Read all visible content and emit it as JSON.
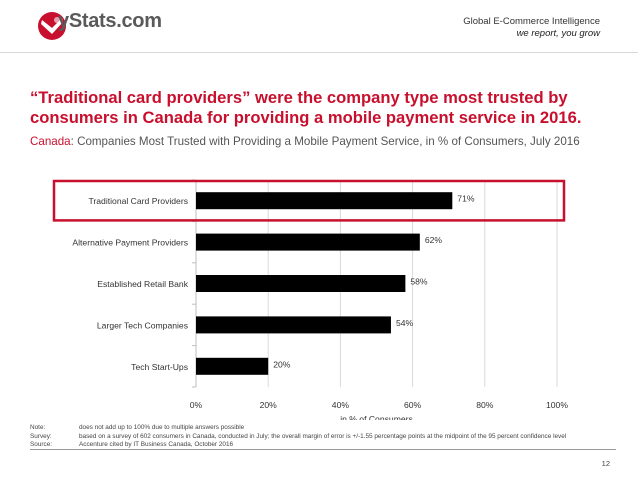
{
  "header": {
    "brand": "yStats.com",
    "tagline_line1": "Global E-Commerce Intelligence",
    "tagline_line2": "we report, you grow",
    "brand_color": "#c8102e"
  },
  "slide": {
    "title": "“Traditional card providers” were the company type most trusted by consumers in Canada for providing a mobile payment service in 2016.",
    "subtitle_country": "Canada",
    "subtitle_rest": ": Companies Most Trusted with Providing a Mobile Payment Service, in % of Consumers, July 2016",
    "page_number": "12"
  },
  "chart_data": {
    "type": "bar",
    "orientation": "horizontal",
    "categories": [
      "Traditional Card Providers",
      "Alternative Payment Providers",
      "Established Retail Bank",
      "Larger Tech Companies",
      "Tech Start-Ups"
    ],
    "values": [
      71,
      62,
      58,
      54,
      20
    ],
    "value_labels": [
      "71%",
      "62%",
      "58%",
      "54%",
      "20%"
    ],
    "xlabel": "in % of Consumers",
    "xlim": [
      0,
      100
    ],
    "x_ticks": [
      "0%",
      "20%",
      "40%",
      "60%",
      "80%",
      "100%"
    ],
    "highlighted_category": "Traditional Card Providers",
    "bar_color": "#000000",
    "highlight_color": "#c8102e"
  },
  "notes": [
    {
      "label": "Note:",
      "text": "does not add up to 100% due to multiple answers possible"
    },
    {
      "label": "Survey:",
      "text": "based on a survey of 602 consumers in Canada, conducted in July; the overall margin of error is +/-1.55 percentage points at the midpoint of the 95 percent confidence level"
    },
    {
      "label": "Source:",
      "text": "Accenture cited by IT Business Canada, October 2016"
    }
  ]
}
